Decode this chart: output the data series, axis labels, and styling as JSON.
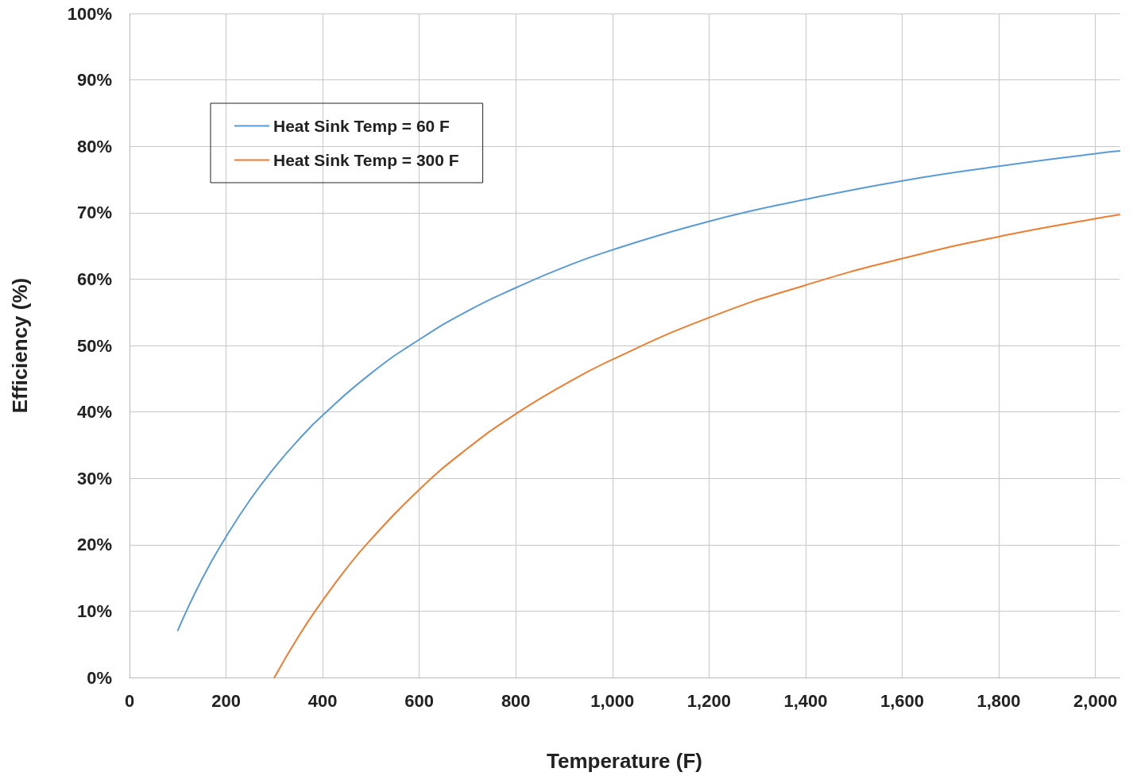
{
  "chart_data": {
    "type": "line",
    "xlabel": "Temperature (F)",
    "ylabel": "Efficiency (%)",
    "xlim": [
      0,
      2050
    ],
    "xticks": [
      0,
      200,
      400,
      600,
      800,
      {
        "value": 1000,
        "label": "1,000"
      },
      {
        "value": 1200,
        "label": "1,200"
      },
      {
        "value": 1400,
        "label": "1,400"
      },
      {
        "value": 1600,
        "label": "1,600"
      },
      {
        "value": 1800,
        "label": "1,800"
      },
      {
        "value": 2000,
        "label": "2,000"
      }
    ],
    "ylim": [
      0,
      100
    ],
    "yticks": [
      {
        "value": 0,
        "label": "0%"
      },
      {
        "value": 10,
        "label": "10%"
      },
      {
        "value": 20,
        "label": "20%"
      },
      {
        "value": 30,
        "label": "30%"
      },
      {
        "value": 40,
        "label": "40%"
      },
      {
        "value": 50,
        "label": "50%"
      },
      {
        "value": 60,
        "label": "60%"
      },
      {
        "value": 70,
        "label": "70%"
      },
      {
        "value": 80,
        "label": "80%"
      },
      {
        "value": 90,
        "label": "90%"
      },
      {
        "value": 100,
        "label": "100%"
      }
    ],
    "grid": true,
    "legend": "top left",
    "marker": "none",
    "line_style": "solid",
    "series": [
      {
        "name": "Heat Sink Temp = 60 F",
        "color": "#5b9bd5",
        "x": [
          100,
          150,
          200,
          250,
          300,
          350,
          400,
          500,
          600,
          700,
          800,
          900,
          1000,
          1200,
          1400,
          1600,
          1800,
          2000,
          2050
        ],
        "values": [
          7.1,
          14.8,
          21.2,
          26.8,
          31.6,
          35.8,
          39.5,
          45.8,
          50.9,
          55.2,
          58.7,
          61.8,
          64.4,
          68.7,
          72.0,
          74.8,
          77.0,
          78.9,
          79.3
        ]
      },
      {
        "name": "Heat Sink Temp = 300 F",
        "color": "#ed7d31",
        "x": [
          300,
          350,
          400,
          450,
          500,
          600,
          700,
          800,
          900,
          1000,
          1200,
          1400,
          1600,
          1800,
          2000,
          2050
        ],
        "values": [
          0,
          6.2,
          11.6,
          16.5,
          20.8,
          28.3,
          34.5,
          39.7,
          44.1,
          47.9,
          54.2,
          59.1,
          63.1,
          66.4,
          69.1,
          69.7
        ]
      }
    ]
  }
}
